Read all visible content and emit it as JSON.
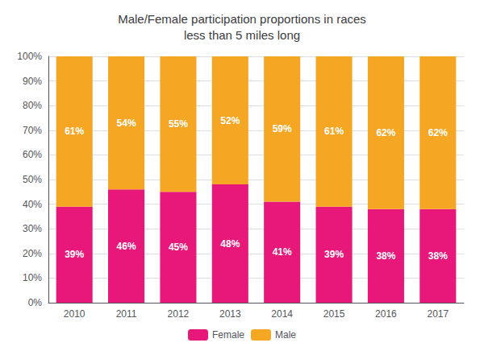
{
  "chart_data": {
    "type": "bar",
    "title": "Male/Female participation proportions in races\nless than 5 miles long",
    "categories": [
      "2010",
      "2011",
      "2012",
      "2013",
      "2014",
      "2015",
      "2016",
      "2017"
    ],
    "stacked": true,
    "data_labels": true,
    "grid": true,
    "legend": "bottom",
    "series": [
      {
        "name": "Female",
        "color": "#E8177A",
        "values": [
          39,
          46,
          45,
          48,
          41,
          39,
          38,
          38
        ],
        "value_labels": [
          "39%",
          "46%",
          "45%",
          "48%",
          "41%",
          "39%",
          "38%",
          "38%"
        ]
      },
      {
        "name": "Male",
        "color": "#F5A623",
        "values": [
          61,
          54,
          55,
          52,
          59,
          61,
          62,
          62
        ],
        "value_labels": [
          "61%",
          "54%",
          "55%",
          "52%",
          "59%",
          "61%",
          "62%",
          "62%"
        ]
      }
    ],
    "ylim": [
      0,
      100
    ],
    "yticks": [
      {
        "value": 0,
        "label": "0%"
      },
      {
        "value": 10,
        "label": "10%"
      },
      {
        "value": 20,
        "label": "20%"
      },
      {
        "value": 30,
        "label": "30%"
      },
      {
        "value": 40,
        "label": "40%"
      },
      {
        "value": 50,
        "label": "50%"
      },
      {
        "value": 60,
        "label": "60%"
      },
      {
        "value": 70,
        "label": "70%"
      },
      {
        "value": 80,
        "label": "80%"
      },
      {
        "value": 90,
        "label": "90%"
      },
      {
        "value": 100,
        "label": "100%"
      }
    ]
  }
}
